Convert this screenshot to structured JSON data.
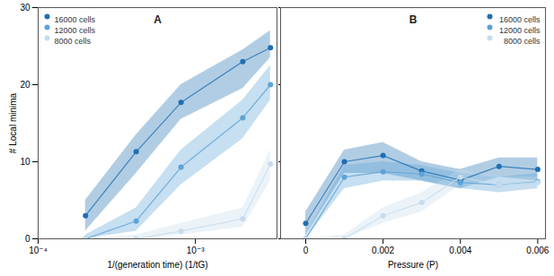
{
  "chart_data": [
    {
      "type": "line",
      "title": "A",
      "log": "x",
      "x_label": "1/(generation time) (1/tG)",
      "y_label": "# Local minima",
      "x": [
        0.0002,
        0.00042,
        0.00081,
        0.002,
        0.003
      ],
      "xlim": [
        0.0001,
        0.0033
      ],
      "xticks": [
        {
          "value": 0.0001,
          "label": "10⁻⁴"
        },
        {
          "value": 0.001,
          "label": "10⁻³"
        }
      ],
      "ylim": [
        0,
        30
      ],
      "yticks": [
        0,
        10,
        20,
        30
      ],
      "legend": "top-left",
      "tick_labels": true,
      "series": [
        {
          "name": "16000 cells",
          "color": "#1f6fb2",
          "marker": "circle",
          "values": [
            3,
            11.3,
            17.7,
            23,
            24.8
          ],
          "lower": [
            1,
            8.5,
            15.5,
            19.5,
            23.5
          ],
          "upper": [
            5,
            13.5,
            20,
            24.5,
            27
          ]
        },
        {
          "name": "12000 cells",
          "color": "#5ca3d6",
          "marker": "circle",
          "values": [
            0,
            2.3,
            9.3,
            15.7,
            20
          ],
          "lower": [
            0,
            1,
            7,
            13,
            18
          ],
          "upper": [
            0.5,
            4,
            11.5,
            18,
            22.5
          ]
        },
        {
          "name": "8000 cells",
          "color": "#c6dcee",
          "marker": "circle",
          "values": [
            0,
            0,
            1,
            2.6,
            9.7
          ],
          "lower": [
            0,
            0,
            0.5,
            1.5,
            7.5
          ],
          "upper": [
            0,
            0.5,
            2,
            4,
            11.5
          ]
        }
      ]
    },
    {
      "type": "line",
      "title": "B",
      "x_label": "Pressure (P)",
      "x": [
        0,
        0.001,
        0.002,
        0.003,
        0.004,
        0.005,
        0.006
      ],
      "xlim": [
        -0.00065,
        0.0062
      ],
      "xticks": [
        0,
        0.002,
        0.004,
        0.006
      ],
      "ylim": [
        0,
        30
      ],
      "yticks": [
        0,
        10,
        20,
        30
      ],
      "legend": "top-right",
      "tick_labels": "x",
      "series": [
        {
          "name": "16000 cells",
          "color": "#1f6fb2",
          "marker": "circle",
          "values": [
            2,
            10,
            10.8,
            8.8,
            7.6,
            9.4,
            9
          ],
          "lower": [
            0.5,
            8.5,
            8.5,
            7.5,
            6.5,
            8,
            7.5
          ],
          "upper": [
            3.5,
            11.5,
            12.5,
            10,
            9,
            10.5,
            10.5
          ]
        },
        {
          "name": "12000 cells",
          "color": "#5ca3d6",
          "marker": "circle",
          "values": [
            0,
            8,
            8.7,
            8.4,
            7.3,
            7,
            7.4
          ],
          "lower": [
            0,
            6.5,
            7.5,
            7.5,
            6.5,
            6,
            6.5
          ],
          "upper": [
            0.5,
            9.5,
            10,
            9.5,
            8.5,
            8,
            8.5
          ]
        },
        {
          "name": "8000 cells",
          "color": "#c6dcee",
          "marker": "circle",
          "values": [
            0,
            0,
            3,
            4.7,
            8,
            7,
            7.3
          ],
          "lower": [
            0,
            0,
            2,
            3.5,
            7,
            6,
            6.5
          ],
          "upper": [
            0,
            0.5,
            4,
            6,
            9,
            8,
            8
          ]
        }
      ]
    }
  ]
}
